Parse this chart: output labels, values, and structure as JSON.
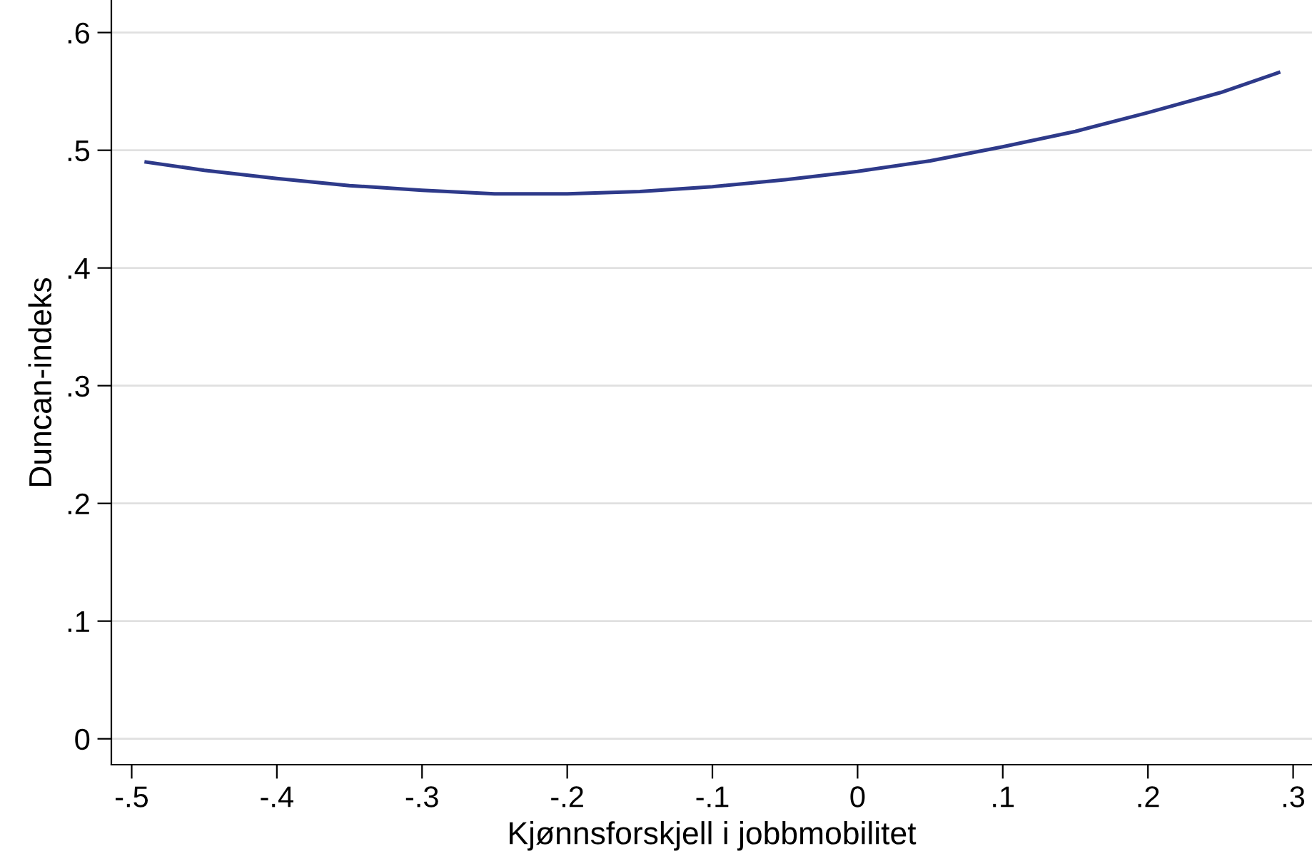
{
  "chart_data": {
    "type": "line",
    "xlabel": "Kjønnsforskjell i jobbmobilitet",
    "ylabel": "Duncan-indeks",
    "series": [
      {
        "color": "#2e3a8a",
        "x": [
          -0.49,
          -0.45,
          -0.4,
          -0.35,
          -0.3,
          -0.25,
          -0.2,
          -0.15,
          -0.1,
          -0.05,
          0,
          0.05,
          0.1,
          0.15,
          0.2,
          0.25,
          0.29
        ],
        "values": [
          0.49,
          0.483,
          0.476,
          0.47,
          0.466,
          0.463,
          0.463,
          0.465,
          0.469,
          0.475,
          0.482,
          0.491,
          0.503,
          0.516,
          0.532,
          0.549,
          0.566
        ]
      }
    ],
    "xlim": [
      -0.514,
      0.313
    ],
    "ylim": [
      -0.022,
      0.627
    ],
    "xticks": [
      {
        "value": -0.5,
        "label": "-.5"
      },
      {
        "value": -0.4,
        "label": "-.4"
      },
      {
        "value": -0.3,
        "label": "-.3"
      },
      {
        "value": -0.2,
        "label": "-.2"
      },
      {
        "value": -0.1,
        "label": "-.1"
      },
      0,
      {
        "value": 0.1,
        "label": ".1"
      },
      {
        "value": 0.2,
        "label": ".2"
      },
      {
        "value": 0.3,
        "label": ".3"
      }
    ],
    "yticks": [
      0,
      {
        "value": 0.1,
        "label": ".1"
      },
      {
        "value": 0.2,
        "label": ".2"
      },
      {
        "value": 0.3,
        "label": ".3"
      },
      {
        "value": 0.4,
        "label": ".4"
      },
      {
        "value": 0.5,
        "label": ".5"
      },
      {
        "value": 0.6,
        "label": ".6"
      }
    ],
    "grid": "y",
    "marker": "none",
    "line_style": "solid"
  }
}
